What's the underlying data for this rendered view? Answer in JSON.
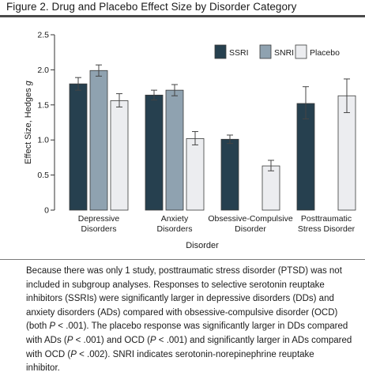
{
  "figure": {
    "title": "Figure 2. Drug and Placebo Effect Size by Disorder Category"
  },
  "chart_data": {
    "type": "bar",
    "categories": [
      [
        "Depressive",
        "Disorders"
      ],
      [
        "Anxiety",
        "Disorders"
      ],
      [
        "Obsessive-Compulsive",
        "Disorder"
      ],
      [
        "Posttraumatic",
        "Stress Disorder"
      ]
    ],
    "series": [
      {
        "name": "SSRI",
        "color": "#26404f",
        "values": [
          1.8,
          1.64,
          1.01,
          1.52
        ],
        "errors": [
          [
            1.71,
            1.89
          ],
          [
            1.57,
            1.71
          ],
          [
            0.95,
            1.07
          ],
          [
            1.3,
            1.76
          ]
        ]
      },
      {
        "name": "SNRI",
        "color": "#8fa2b0",
        "values": [
          1.99,
          1.71,
          null,
          null
        ],
        "errors": [
          [
            1.91,
            2.07
          ],
          [
            1.63,
            1.79
          ],
          null,
          null
        ]
      },
      {
        "name": "Placebo",
        "color": "#ecedf0",
        "values": [
          1.56,
          1.02,
          0.63,
          1.63
        ],
        "errors": [
          [
            1.47,
            1.66
          ],
          [
            0.93,
            1.12
          ],
          [
            0.56,
            0.71
          ],
          [
            1.39,
            1.87
          ]
        ]
      }
    ],
    "xlabel": "Disorder",
    "ylabel": "Effect Size, Hedges g",
    "ylabel_parts": [
      "Effect Size, Hedges ",
      "g"
    ],
    "ylim": [
      0,
      2.5
    ],
    "yticks": [
      "0",
      "0.5",
      "1.0",
      "1.5",
      "2.0",
      "2.5"
    ],
    "legend": "top-right",
    "grid": false
  },
  "caption": {
    "lines": [
      [
        {
          "t": "Because there was only 1 study, posttraumatic stress disorder (PTSD) was not"
        }
      ],
      [
        {
          "t": "included in subgroup analyses. Responses to selective serotonin reuptake"
        }
      ],
      [
        {
          "t": "inhibitors (SSRIs) were significantly larger in depressive disorders (DDs) and"
        }
      ],
      [
        {
          "t": "anxiety disorders (ADs) compared with obsessive-compulsive disorder (OCD)"
        }
      ],
      [
        {
          "t": "(both "
        },
        {
          "t": "P",
          "i": true
        },
        {
          "t": " < .001). The placebo response was significantly larger in DDs compared"
        }
      ],
      [
        {
          "t": "with ADs ("
        },
        {
          "t": "P",
          "i": true
        },
        {
          "t": " < .001) and OCD ("
        },
        {
          "t": "P",
          "i": true
        },
        {
          "t": " < .001) and significantly larger in ADs compared"
        }
      ],
      [
        {
          "t": "with OCD ("
        },
        {
          "t": "P",
          "i": true
        },
        {
          "t": " < .002). SNRI indicates serotonin-norepinephrine reuptake"
        }
      ],
      [
        {
          "t": "inhibitor."
        }
      ]
    ]
  }
}
